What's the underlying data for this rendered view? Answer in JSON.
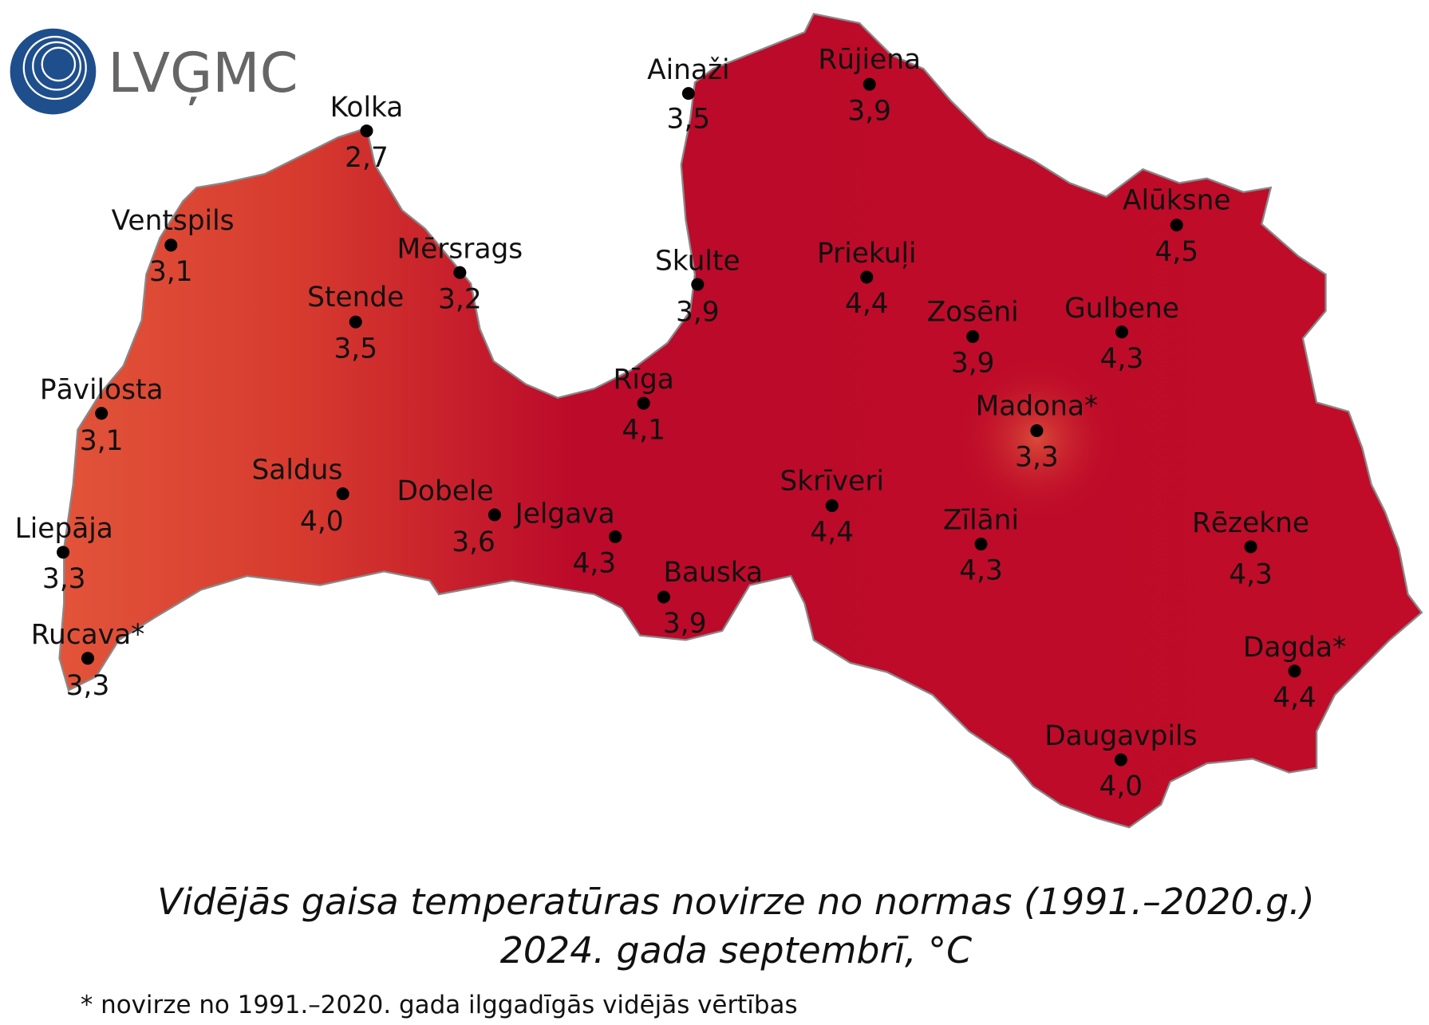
{
  "logo": "LVĢMC",
  "stations": [
    {
      "name": "Kolka",
      "value": "2,7"
    },
    {
      "name": "Ventspils",
      "value": "3,1"
    },
    {
      "name": "Mērsrags",
      "value": "3,2"
    },
    {
      "name": "Stende",
      "value": "3,5"
    },
    {
      "name": "Pāvilosta",
      "value": "3,1"
    },
    {
      "name": "Liepāja",
      "value": "3,3"
    },
    {
      "name": "Rucava*",
      "value": "3,3"
    },
    {
      "name": "Saldus",
      "value": "4,0"
    },
    {
      "name": "Dobele",
      "value": "3,6"
    },
    {
      "name": "Jelgava",
      "value": "4,3"
    },
    {
      "name": "Bauska",
      "value": "3,9"
    },
    {
      "name": "Rīga",
      "value": "4,1"
    },
    {
      "name": "Skulte",
      "value": "3,9"
    },
    {
      "name": "Ainaži",
      "value": "3,5"
    },
    {
      "name": "Rūjiena",
      "value": "3,9"
    },
    {
      "name": "Priekuļi",
      "value": "4,4"
    },
    {
      "name": "Zosēni",
      "value": "3,9"
    },
    {
      "name": "Gulbene",
      "value": "4,3"
    },
    {
      "name": "Alūksne",
      "value": "4,5"
    },
    {
      "name": "Madona*",
      "value": "3,3"
    },
    {
      "name": "Skrīveri",
      "value": "4,4"
    },
    {
      "name": "Zīlāni",
      "value": "4,3"
    },
    {
      "name": "Rēzekne",
      "value": "4,3"
    },
    {
      "name": "Dagda*",
      "value": "4,4"
    },
    {
      "name": "Daugavpils",
      "value": "4,0"
    }
  ],
  "title": [
    "Vidējās gaisa temperatūras novirze no normas (1991.–2020.g.)",
    "2024. gada septembrī, °C"
  ],
  "footnote": "* novirze no 1991.–2020. gada ilggadīgās vidējās vērtības"
}
